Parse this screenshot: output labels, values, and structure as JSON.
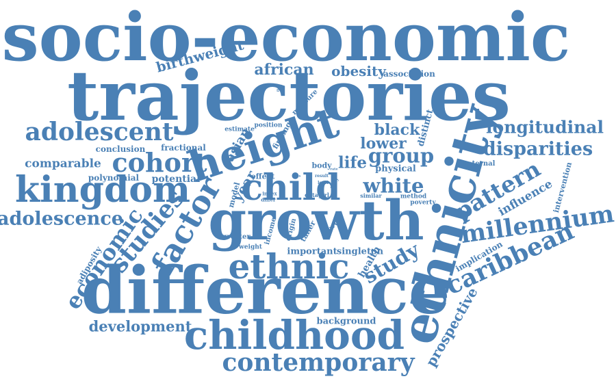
{
  "accent_color": "#4a80b5",
  "background_color": "#ffffff",
  "words": [
    "socio-economic",
    "trajectories",
    "difference",
    "growth",
    "ethnicity",
    "height",
    "childhood",
    "child",
    "kingdom",
    "ethnic",
    "factor",
    "cohort",
    "adolescent",
    "contemporary",
    "millennium",
    "caribbean",
    "studies",
    "economic",
    "adolescence",
    "pattern",
    "white",
    "group",
    "longitudinal",
    "disparities",
    "study",
    "development",
    "african",
    "obesity",
    "birthweight",
    "black",
    "lower",
    "life",
    "comparable",
    "prospective",
    "year",
    "asian",
    "influence",
    "conclusion",
    "fractional",
    "potential",
    "polynomial",
    "association",
    "background",
    "important",
    "singleton",
    "health",
    "measure",
    "finding",
    "estimate",
    "position",
    "distinct",
    "physical",
    "maternal",
    "intervention",
    "implication",
    "adiposity",
    "body",
    "effect",
    "model",
    "income",
    "origin",
    "taller",
    "shorter",
    "greater",
    "weight",
    "method",
    "poverty",
    "similar",
    "index",
    "differ",
    "data",
    "girl",
    "boy",
    "result",
    "level",
    "was",
    "rate",
    "the"
  ]
}
